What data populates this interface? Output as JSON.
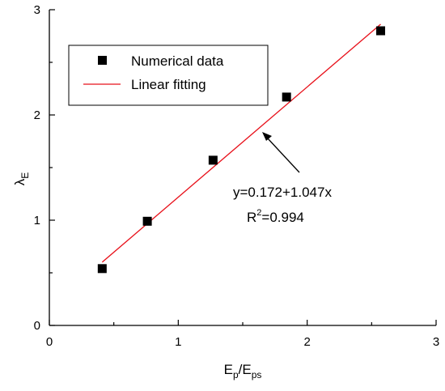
{
  "chart_data": {
    "type": "scatter",
    "x_label": {
      "main": "E",
      "sub1": "p",
      "sep": "/E",
      "sub2": "ps"
    },
    "y_label": {
      "main": "λ",
      "sub": "E"
    },
    "xlim": [
      0,
      3
    ],
    "ylim": [
      0,
      3
    ],
    "x_ticks": [
      "0",
      "1",
      "2",
      "3"
    ],
    "y_ticks": [
      "0",
      "1",
      "2",
      "3"
    ],
    "grid": false,
    "legend_position": "top-left",
    "series": [
      {
        "name": "Numerical data",
        "kind": "markers",
        "marker": "square",
        "color": "#000000",
        "points": [
          {
            "x": 0.41,
            "y": 0.54
          },
          {
            "x": 0.76,
            "y": 0.99
          },
          {
            "x": 1.27,
            "y": 1.57
          },
          {
            "x": 1.84,
            "y": 2.17
          },
          {
            "x": 2.57,
            "y": 2.8
          }
        ]
      },
      {
        "name": "Linear fitting",
        "kind": "line",
        "color": "#e8101a",
        "x_range": [
          0.41,
          2.57
        ],
        "intercept": 0.172,
        "slope": 1.047
      }
    ],
    "annotation": {
      "equation": "y=0.172+1.047x",
      "r2_prefix": "R",
      "r2_sup": "2",
      "r2_value": "=0.994",
      "arrow_target": {
        "x": 1.65,
        "y": 1.8
      }
    }
  }
}
